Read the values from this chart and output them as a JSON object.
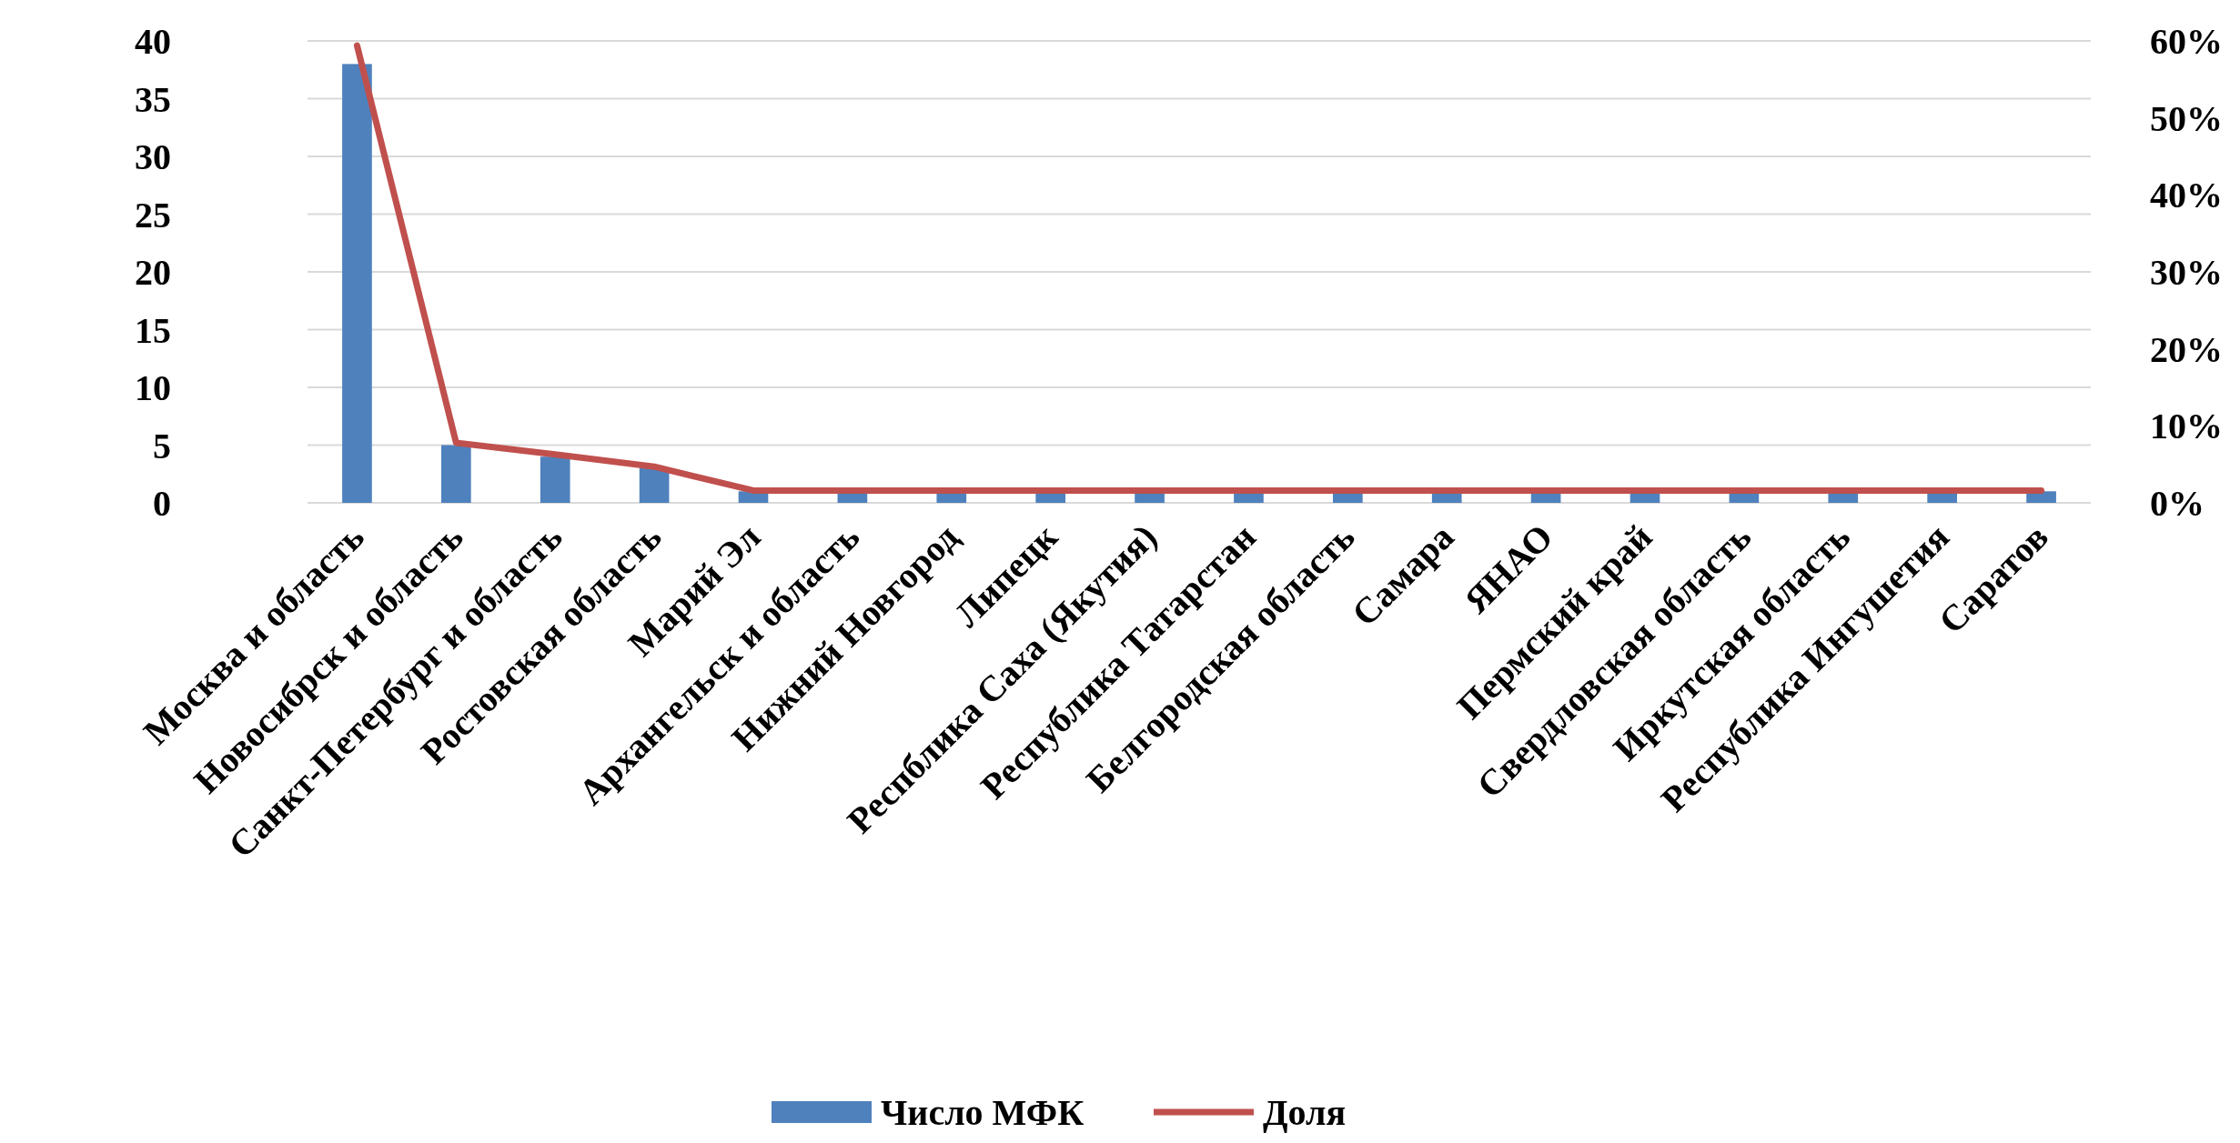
{
  "chart_data": {
    "type": "bar",
    "categories": [
      "Москва и область",
      "Новосибрск и область",
      "Санкт-Петербург и область",
      "Ростовская область",
      "Марий Эл",
      "Архангельск и область",
      "Нижний Новгород",
      "Липецк",
      "Респблика Саха (Якутия)",
      "Республика Татарстан",
      "Белгородская область",
      "Самара",
      "ЯНАО",
      "Пермский край",
      "Свердловская область",
      "Иркутская область",
      "Республика Ингушетия",
      "Саратов"
    ],
    "series": [
      {
        "name": "Число МФК",
        "color": "#4f81bd",
        "values": [
          38,
          5,
          4,
          3,
          1,
          1,
          1,
          1,
          1,
          1,
          1,
          1,
          1,
          1,
          1,
          1,
          1,
          1
        ]
      },
      {
        "name": "Доля",
        "type": "line",
        "axis": "y2",
        "color": "#c0504d",
        "values": [
          0.594,
          0.078,
          0.063,
          0.047,
          0.016,
          0.016,
          0.016,
          0.016,
          0.016,
          0.016,
          0.016,
          0.016,
          0.016,
          0.016,
          0.016,
          0.016,
          0.016,
          0.016
        ]
      }
    ],
    "ylim": [
      0,
      40
    ],
    "yticks": [
      0,
      5,
      10,
      15,
      20,
      25,
      30,
      35,
      40
    ],
    "y2lim": [
      0,
      0.6
    ],
    "y2ticks": [
      {
        "value": 0,
        "label": "0%"
      },
      {
        "value": 0.1,
        "label": "10%"
      },
      {
        "value": 0.2,
        "label": "20%"
      },
      {
        "value": 0.3,
        "label": "30%"
      },
      {
        "value": 0.4,
        "label": "40%"
      },
      {
        "value": 0.5,
        "label": "50%"
      },
      {
        "value": 0.6,
        "label": "60%"
      }
    ],
    "grid": true,
    "legend": "bottom"
  }
}
